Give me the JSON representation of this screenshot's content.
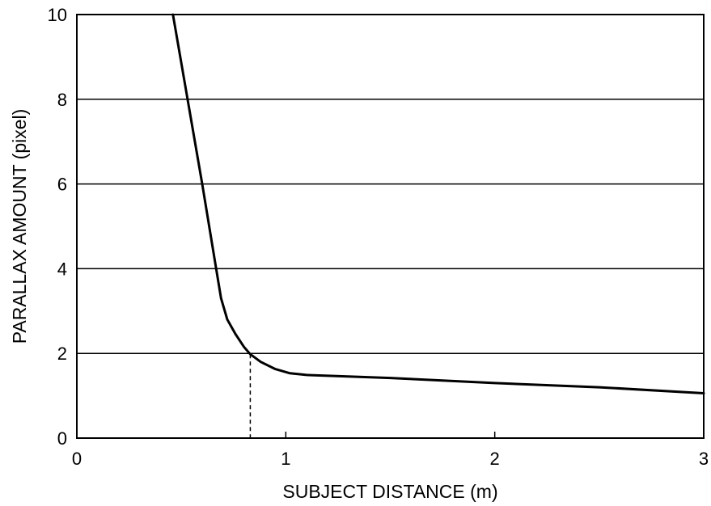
{
  "chart_data": {
    "type": "line",
    "title": "",
    "xlabel": "SUBJECT DISTANCE (m)",
    "ylabel": "PARALLAX AMOUNT (pixel)",
    "xlim": [
      0,
      3
    ],
    "ylim": [
      0,
      10
    ],
    "x_ticks": [
      0,
      1,
      2,
      3
    ],
    "y_ticks": [
      0,
      2,
      4,
      6,
      8,
      10
    ],
    "x_tick_labels": [
      "0",
      "1",
      "2",
      "3"
    ],
    "y_tick_labels": [
      "0",
      "2",
      "4",
      "6",
      "8",
      "10"
    ],
    "grid": "horizontal",
    "legend": "none",
    "series": [
      {
        "x": [
          0.46,
          0.53,
          0.6,
          0.66,
          0.69,
          0.72,
          0.76,
          0.8,
          0.83,
          0.88,
          0.95,
          1.02,
          1.1,
          1.5,
          2.0,
          2.5,
          3.0
        ],
        "y": [
          10.0,
          8.0,
          6.0,
          4.2,
          3.3,
          2.8,
          2.45,
          2.15,
          1.98,
          1.8,
          1.63,
          1.53,
          1.49,
          1.42,
          1.3,
          1.2,
          1.06
        ]
      }
    ],
    "markers": [
      {
        "style": "dashed",
        "x": 0.83,
        "y": 1.98
      }
    ],
    "colors": {
      "line": "#000000",
      "grid": "#000000",
      "background": "#ffffff"
    }
  }
}
